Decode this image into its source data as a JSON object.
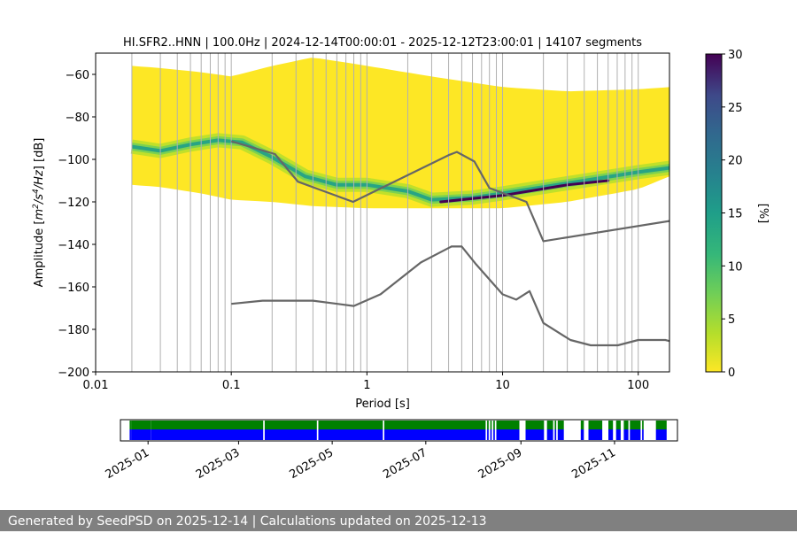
{
  "chart_data": {
    "type": "heatmap",
    "title": "HI.SFR2..HNN | 100.0Hz | 2024-12-14T00:00:01 - 2025-12-12T23:00:01 | 14107 segments",
    "xlabel": "Period [s]",
    "ylabel_parts": [
      "Amplitude [",
      "m",
      "2",
      "/",
      "s",
      "4",
      "/",
      "Hz",
      "] [dB]"
    ],
    "xscale": "log",
    "xlim": [
      0.01,
      170
    ],
    "ylim": [
      -200,
      -50
    ],
    "xticks": [
      {
        "value": 0.01,
        "label": "0.01"
      },
      {
        "value": 0.1,
        "label": "0.1"
      },
      {
        "value": 1,
        "label": "1"
      },
      {
        "value": 10,
        "label": "10"
      },
      {
        "value": 100,
        "label": "100"
      }
    ],
    "yticks": [
      {
        "value": -60,
        "label": "−60"
      },
      {
        "value": -80,
        "label": "−80"
      },
      {
        "value": -100,
        "label": "−100"
      },
      {
        "value": -120,
        "label": "−120"
      },
      {
        "value": -140,
        "label": "−140"
      },
      {
        "value": -160,
        "label": "−160"
      },
      {
        "value": -180,
        "label": "−180"
      },
      {
        "value": -200,
        "label": "−200"
      }
    ],
    "grid": true,
    "colorbar": {
      "label": "[%]",
      "range": [
        0,
        30
      ],
      "ticks": [
        {
          "value": 0,
          "label": "0"
        },
        {
          "value": 5,
          "label": "5"
        },
        {
          "value": 10,
          "label": "10"
        },
        {
          "value": 15,
          "label": "15"
        },
        {
          "value": 20,
          "label": "20"
        },
        {
          "value": 25,
          "label": "25"
        },
        {
          "value": 30,
          "label": "30"
        }
      ],
      "colormap": "viridis_r"
    },
    "density": {
      "period_range": [
        0.0185,
        170
      ],
      "envelope": [
        {
          "period": 0.0185,
          "top": -56,
          "bottom": -112
        },
        {
          "period": 0.03,
          "top": -57,
          "bottom": -113
        },
        {
          "period": 0.06,
          "top": -59,
          "bottom": -116
        },
        {
          "period": 0.1,
          "top": -61,
          "bottom": -119
        },
        {
          "period": 0.2,
          "top": -56,
          "bottom": -120
        },
        {
          "period": 0.4,
          "top": -52,
          "bottom": -122
        },
        {
          "period": 1,
          "top": -56,
          "bottom": -123
        },
        {
          "period": 3,
          "top": -61,
          "bottom": -123
        },
        {
          "period": 10,
          "top": -66,
          "bottom": -123
        },
        {
          "period": 30,
          "top": -68,
          "bottom": -120
        },
        {
          "period": 100,
          "top": -67,
          "bottom": -114
        },
        {
          "period": 170,
          "top": -66,
          "bottom": -108
        }
      ],
      "mode_ridge": [
        {
          "period": 0.0185,
          "value": -94
        },
        {
          "period": 0.03,
          "value": -96
        },
        {
          "period": 0.05,
          "value": -93
        },
        {
          "period": 0.08,
          "value": -91
        },
        {
          "period": 0.12,
          "value": -92
        },
        {
          "period": 0.2,
          "value": -99
        },
        {
          "period": 0.35,
          "value": -108
        },
        {
          "period": 0.6,
          "value": -112
        },
        {
          "period": 1,
          "value": -112
        },
        {
          "period": 2,
          "value": -115
        },
        {
          "period": 3,
          "value": -119
        },
        {
          "period": 6,
          "value": -118
        },
        {
          "period": 10,
          "value": -116
        },
        {
          "period": 20,
          "value": -113
        },
        {
          "period": 40,
          "value": -110
        },
        {
          "period": 100,
          "value": -106
        },
        {
          "period": 170,
          "value": -104
        }
      ],
      "peak_ridge": [
        {
          "period": 3.5,
          "value": -120
        },
        {
          "period": 10,
          "value": -117
        },
        {
          "period": 30,
          "value": -112
        },
        {
          "period": 60,
          "value": -110
        }
      ]
    },
    "series": [
      {
        "x": [
          0.1,
          0.21,
          0.31,
          0.79,
          4.0,
          4.6,
          6.2,
          8.0,
          15.0,
          20.0,
          170.0
        ],
        "y": [
          -91.5,
          -97.5,
          -110.5,
          -120.0,
          -98.0,
          -96.5,
          -101.0,
          -113.5,
          -120.0,
          -138.5,
          -129.0
        ]
      },
      {
        "x": [
          0.1,
          0.17,
          0.4,
          0.8,
          1.26,
          2.5,
          4.2,
          5.0,
          6.3,
          10.0,
          12.6,
          15.8,
          20.0,
          31.6,
          44.7,
          70.8,
          100.0,
          158.5,
          170.0
        ],
        "y": [
          -168,
          -166.5,
          -166.5,
          -169,
          -163.5,
          -148.5,
          -141,
          -141,
          -149,
          -163.5,
          -166,
          -162,
          -177,
          -185,
          -187.5,
          -187.5,
          -185,
          -185,
          -185.5
        ]
      }
    ],
    "vertical_lines": [
      0.0185,
      0.03,
      0.04,
      0.05,
      0.06,
      0.07,
      0.08,
      0.09,
      0.1,
      0.2,
      0.3,
      0.4,
      0.5,
      0.6,
      0.7,
      0.8,
      0.9,
      1.0,
      2,
      3,
      4,
      5,
      6,
      7,
      8,
      9,
      10,
      20,
      30,
      40,
      50,
      60,
      70,
      80,
      90,
      100
    ]
  },
  "timeline": {
    "start": "2024-12-14",
    "end": "2025-12-12",
    "ticks": [
      "2025-01",
      "2025-03",
      "2025-05",
      "2025-07",
      "2025-09",
      "2025-11"
    ],
    "tick_dates": [
      "2025-01-01",
      "2025-03-01",
      "2025-05-01",
      "2025-07-01",
      "2025-09-01",
      "2025-11-01"
    ],
    "covered": [
      [
        "2024-12-20",
        "2024-12-21"
      ],
      [
        "2024-12-21",
        "2025-01-03"
      ],
      [
        "2025-01-03",
        "2025-03-17"
      ],
      [
        "2025-03-18",
        "2025-04-21"
      ],
      [
        "2025-04-22",
        "2025-06-03"
      ],
      [
        "2025-06-04",
        "2025-08-09"
      ],
      [
        "2025-08-10",
        "2025-08-11"
      ],
      [
        "2025-08-12",
        "2025-08-13"
      ],
      [
        "2025-08-14",
        "2025-08-15"
      ],
      [
        "2025-08-16",
        "2025-08-31"
      ],
      [
        "2025-09-04",
        "2025-09-16"
      ],
      [
        "2025-09-18",
        "2025-09-22"
      ],
      [
        "2025-09-23",
        "2025-09-24"
      ],
      [
        "2025-09-25",
        "2025-09-29"
      ],
      [
        "2025-10-10",
        "2025-10-12"
      ],
      [
        "2025-10-15",
        "2025-10-24"
      ],
      [
        "2025-10-28",
        "2025-10-31"
      ],
      [
        "2025-11-02",
        "2025-11-05"
      ],
      [
        "2025-11-07",
        "2025-11-10"
      ],
      [
        "2025-11-11",
        "2025-11-18"
      ],
      [
        "2025-11-19",
        "2025-11-20"
      ],
      [
        "2025-11-28",
        "2025-12-05"
      ]
    ],
    "colors": {
      "upper": "#008000",
      "lower": "#0000ff"
    }
  },
  "footer": {
    "text": "Generated by SeedPSD on 2025-12-14 | Calculations updated on 2025-12-13"
  },
  "colors": {
    "model_line": "#666666",
    "grid": "#b0b0b0",
    "footer_bg": "#808080"
  }
}
